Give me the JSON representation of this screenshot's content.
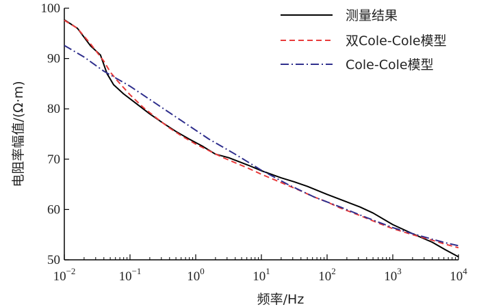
{
  "chart_data": {
    "type": "line",
    "title": "",
    "xlabel": "频率/Hz",
    "ylabel": "电阻率幅值/(Ω·m)",
    "xscale": "log",
    "xlim_exp": [
      -2,
      4
    ],
    "ylim": [
      50,
      100
    ],
    "grid": false,
    "legend_position": "top-right",
    "x_ticks": [
      {
        "base": "10",
        "exp": "−2",
        "value_exp": -2
      },
      {
        "base": "10",
        "exp": "−1",
        "value_exp": -1
      },
      {
        "base": "10",
        "exp": "0",
        "value_exp": 0
      },
      {
        "base": "10",
        "exp": "1",
        "value_exp": 1
      },
      {
        "base": "10",
        "exp": "2",
        "value_exp": 2
      },
      {
        "base": "10",
        "exp": "3",
        "value_exp": 3
      },
      {
        "base": "10",
        "exp": "4",
        "value_exp": 4
      }
    ],
    "y_ticks": [
      {
        "label": "50",
        "value": 50
      },
      {
        "label": "60",
        "value": 60
      },
      {
        "label": "70",
        "value": 70
      },
      {
        "label": "80",
        "value": 80
      },
      {
        "label": "90",
        "value": 90
      },
      {
        "label": "100",
        "value": 100
      }
    ],
    "series": [
      {
        "name": "测量结果",
        "color": "#000000",
        "style": "solid",
        "points": [
          [
            -2.0,
            97.7
          ],
          [
            -1.8,
            96.0
          ],
          [
            -1.6,
            92.5
          ],
          [
            -1.45,
            90.7
          ],
          [
            -1.35,
            87.0
          ],
          [
            -1.25,
            84.8
          ],
          [
            -1.1,
            83.0
          ],
          [
            -0.9,
            81.0
          ],
          [
            -0.7,
            79.0
          ],
          [
            -0.5,
            77.2
          ],
          [
            -0.3,
            75.5
          ],
          [
            -0.1,
            74.0
          ],
          [
            0.1,
            72.6
          ],
          [
            0.3,
            71.0
          ],
          [
            0.5,
            70.3
          ],
          [
            0.8,
            68.8
          ],
          [
            1.0,
            67.7
          ],
          [
            1.3,
            66.3
          ],
          [
            1.5,
            65.5
          ],
          [
            1.7,
            64.6
          ],
          [
            1.85,
            63.8
          ],
          [
            2.0,
            63.0
          ],
          [
            2.3,
            61.5
          ],
          [
            2.5,
            60.5
          ],
          [
            2.7,
            59.3
          ],
          [
            3.0,
            57.0
          ],
          [
            3.3,
            55.2
          ],
          [
            3.6,
            53.5
          ],
          [
            3.8,
            52.0
          ],
          [
            4.0,
            50.6
          ]
        ]
      },
      {
        "name": "双Cole-Cole模型",
        "color": "#e83a3a",
        "style": "dashed",
        "points": [
          [
            -2.0,
            97.6
          ],
          [
            -1.8,
            96.0
          ],
          [
            -1.6,
            92.9
          ],
          [
            -1.4,
            89.5
          ],
          [
            -1.3,
            87.3
          ],
          [
            -1.2,
            85.7
          ],
          [
            -1.0,
            82.8
          ],
          [
            -0.8,
            80.3
          ],
          [
            -0.6,
            78.2
          ],
          [
            -0.4,
            76.2
          ],
          [
            -0.2,
            74.5
          ],
          [
            0.0,
            73.0
          ],
          [
            0.2,
            71.7
          ],
          [
            0.4,
            70.4
          ],
          [
            0.6,
            69.3
          ],
          [
            0.8,
            68.2
          ],
          [
            1.0,
            67.0
          ],
          [
            1.2,
            65.9
          ],
          [
            1.4,
            64.8
          ],
          [
            1.6,
            63.7
          ],
          [
            1.8,
            62.5
          ],
          [
            2.0,
            61.5
          ],
          [
            2.2,
            60.3
          ],
          [
            2.5,
            58.8
          ],
          [
            2.8,
            57.2
          ],
          [
            3.0,
            56.2
          ],
          [
            3.3,
            55.0
          ],
          [
            3.6,
            53.9
          ],
          [
            3.8,
            53.1
          ],
          [
            4.0,
            52.4
          ]
        ]
      },
      {
        "name": "Cole-Cole模型",
        "color": "#2e2e8c",
        "style": "dashdot",
        "points": [
          [
            -2.0,
            92.6
          ],
          [
            -1.7,
            90.3
          ],
          [
            -1.4,
            87.5
          ],
          [
            -1.0,
            84.5
          ],
          [
            -0.6,
            81.0
          ],
          [
            -0.2,
            77.5
          ],
          [
            0.2,
            74.0
          ],
          [
            0.6,
            71.0
          ],
          [
            1.0,
            67.8
          ],
          [
            1.4,
            65.0
          ],
          [
            1.8,
            62.5
          ],
          [
            2.2,
            60.5
          ],
          [
            2.6,
            58.4
          ],
          [
            3.0,
            56.4
          ],
          [
            3.3,
            55.2
          ],
          [
            3.6,
            54.1
          ],
          [
            3.8,
            53.4
          ],
          [
            4.0,
            52.8
          ]
        ]
      }
    ]
  },
  "colors": {
    "axis": "#000000",
    "measured": "#000000",
    "double_cole": "#e83a3a",
    "cole": "#2e2e8c"
  }
}
